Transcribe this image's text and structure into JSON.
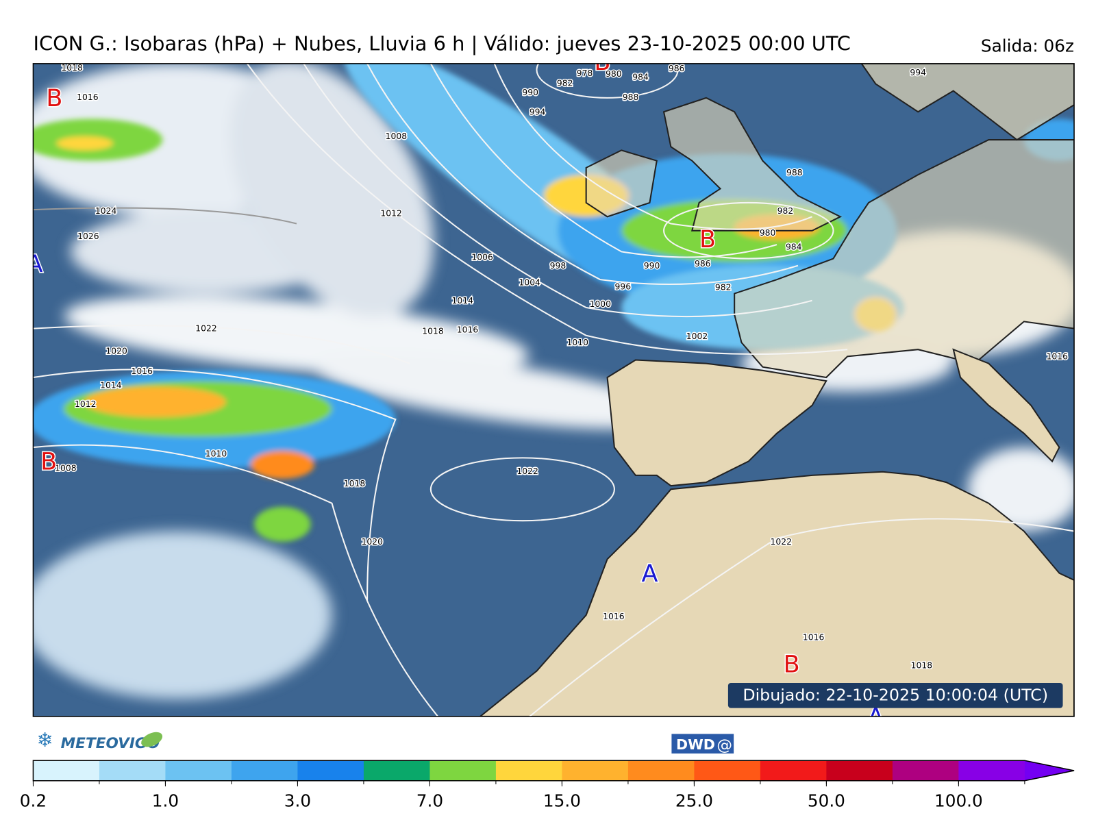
{
  "header": {
    "title": "ICON G.: Isobaras (hPa) + Nubes, Lluvia 6 h | Válido: jueves 23-10-2025 00:00 UTC",
    "run": "Salida: 06z"
  },
  "map": {
    "centers": [
      "B",
      "B",
      "B",
      "B",
      "B",
      "A",
      "A",
      "A"
    ],
    "isobar_labels": [
      1018,
      1016,
      1024,
      1026,
      1022,
      1020,
      1016,
      1014,
      1012,
      1010,
      1008,
      1018,
      1020,
      1008,
      1012,
      1006,
      1014,
      1018,
      1016,
      1004,
      998,
      1000,
      996,
      1010,
      1002,
      990,
      986,
      982,
      980,
      984,
      982,
      988,
      994,
      990,
      982,
      978,
      980,
      984,
      986,
      988,
      994,
      1022,
      1022,
      1016,
      1016,
      1018,
      1016
    ],
    "drawn": "Dibujado: 22-10-2025 10:00:04 (UTC)"
  },
  "logos": {
    "meteovigo": "METEOVIGO",
    "dwd": "DWD"
  },
  "colorbar": {
    "colors": [
      "#d8f3fd",
      "#a4dcf7",
      "#6cc2f2",
      "#3ea4ee",
      "#1882ec",
      "#0aa86a",
      "#7ed640",
      "#ffd63c",
      "#ffb22e",
      "#ff8b1e",
      "#ff5816",
      "#f21a1a",
      "#c8001c",
      "#ae0080",
      "#8800e6",
      "#7400f2"
    ],
    "ticks": [
      {
        "value": 0.2,
        "label": "0.2"
      },
      {
        "value": 1,
        "label": "1.0"
      },
      {
        "value": 3,
        "label": "3.0"
      },
      {
        "value": 7,
        "label": "7.0"
      },
      {
        "value": 15,
        "label": "15.0"
      },
      {
        "value": 25,
        "label": "25.0"
      },
      {
        "value": 50,
        "label": "50.0"
      },
      {
        "value": 100,
        "label": "100.0"
      }
    ]
  }
}
